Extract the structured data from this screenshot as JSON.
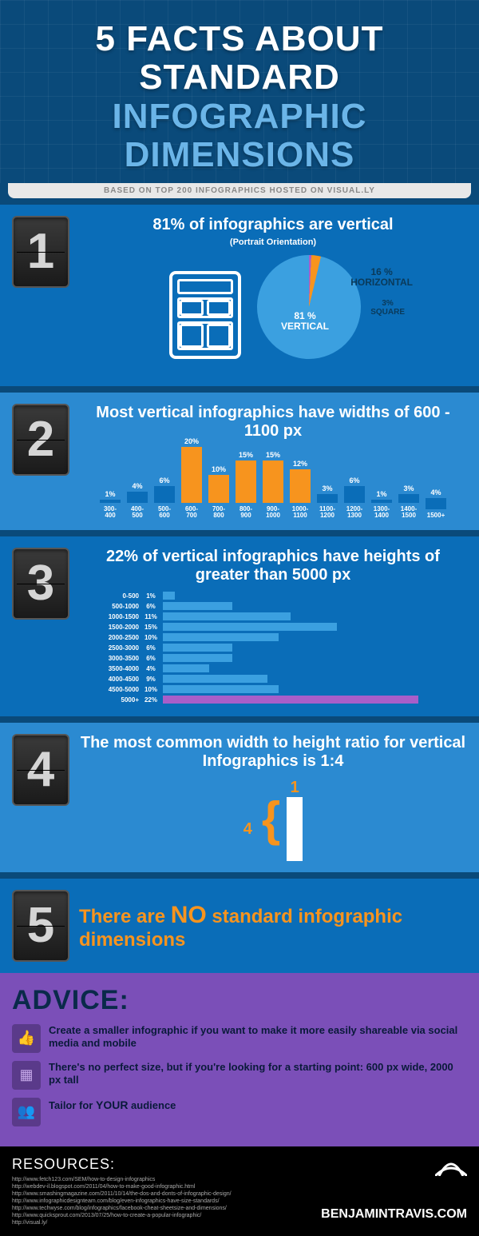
{
  "header": {
    "title_line1": "5 FACTS ABOUT STANDARD",
    "title_line2": "INFOGRAPHIC",
    "title_line3": "DIMENSIONS",
    "subtitle": "BASED ON TOP 200 INFOGRAPHICS HOSTED ON VISUAL.LY"
  },
  "fact1": {
    "num": "1",
    "title": "81% of infographics are vertical",
    "subtitle": "(Portrait Orientation)",
    "pie": {
      "slices": [
        {
          "label": "VERTICAL",
          "pct": "81 %",
          "value": 81,
          "color": "#3ba0e0"
        },
        {
          "label": "HORIZONTAL",
          "pct": "16 %",
          "value": 16,
          "color": "#a85ec9"
        },
        {
          "label": "SQUARE",
          "pct": "3%",
          "value": 3,
          "color": "#f7941e"
        }
      ]
    }
  },
  "fact2": {
    "num": "2",
    "title": "Most vertical infographics have widths of 600 - 1100 px",
    "bars": [
      {
        "label": "300-400",
        "pct": "1%",
        "value": 1,
        "color": "#0a6db8"
      },
      {
        "label": "400-500",
        "pct": "4%",
        "value": 4,
        "color": "#0a6db8"
      },
      {
        "label": "500-600",
        "pct": "6%",
        "value": 6,
        "color": "#0a6db8"
      },
      {
        "label": "600-700",
        "pct": "20%",
        "value": 20,
        "color": "#f7941e"
      },
      {
        "label": "700-800",
        "pct": "10%",
        "value": 10,
        "color": "#f7941e"
      },
      {
        "label": "800-900",
        "pct": "15%",
        "value": 15,
        "color": "#f7941e"
      },
      {
        "label": "900-1000",
        "pct": "15%",
        "value": 15,
        "color": "#f7941e"
      },
      {
        "label": "1000-1100",
        "pct": "12%",
        "value": 12,
        "color": "#f7941e"
      },
      {
        "label": "1100-1200",
        "pct": "3%",
        "value": 3,
        "color": "#0a6db8"
      },
      {
        "label": "1200-1300",
        "pct": "6%",
        "value": 6,
        "color": "#0a6db8"
      },
      {
        "label": "1300-1400",
        "pct": "1%",
        "value": 1,
        "color": "#0a6db8"
      },
      {
        "label": "1400-1500",
        "pct": "3%",
        "value": 3,
        "color": "#0a6db8"
      },
      {
        "label": "1500+",
        "pct": "4%",
        "value": 4,
        "color": "#0a6db8"
      }
    ],
    "max_value": 20
  },
  "fact3": {
    "num": "3",
    "title": "22% of vertical infographics have heights of greater than 5000 px",
    "bars": [
      {
        "label": "0-500",
        "pct": "1%",
        "value": 1,
        "color": "#3ba0e0"
      },
      {
        "label": "500-1000",
        "pct": "6%",
        "value": 6,
        "color": "#3ba0e0"
      },
      {
        "label": "1000-1500",
        "pct": "11%",
        "value": 11,
        "color": "#3ba0e0"
      },
      {
        "label": "1500-2000",
        "pct": "15%",
        "value": 15,
        "color": "#3ba0e0"
      },
      {
        "label": "2000-2500",
        "pct": "10%",
        "value": 10,
        "color": "#3ba0e0"
      },
      {
        "label": "2500-3000",
        "pct": "6%",
        "value": 6,
        "color": "#3ba0e0"
      },
      {
        "label": "3000-3500",
        "pct": "6%",
        "value": 6,
        "color": "#3ba0e0"
      },
      {
        "label": "3500-4000",
        "pct": "4%",
        "value": 4,
        "color": "#3ba0e0"
      },
      {
        "label": "4000-4500",
        "pct": "9%",
        "value": 9,
        "color": "#3ba0e0"
      },
      {
        "label": "4500-5000",
        "pct": "10%",
        "value": 10,
        "color": "#3ba0e0"
      },
      {
        "label": "5000+",
        "pct": "22%",
        "value": 22,
        "color": "#a85ec9"
      }
    ],
    "max_value": 22
  },
  "fact4": {
    "num": "4",
    "title": "The most common width to height ratio for vertical Infographics is 1:4",
    "ratio_w": "1",
    "ratio_h": "4"
  },
  "fact5": {
    "num": "5",
    "title_pre": "There are ",
    "title_no": "NO",
    "title_post": " standard infographic dimensions"
  },
  "advice": {
    "header": "ADVICE:",
    "items": [
      {
        "icon": "👍",
        "text": "Create a smaller infographic if you want to make it more easily shareable via social media and mobile"
      },
      {
        "icon": "▦",
        "text": "There's no perfect size, but if you're looking for a starting point: 600 px wide, 2000 px tall"
      },
      {
        "icon": "👥",
        "text_pre": "Tailor for ",
        "text_b": "YOUR",
        "text_post": " audience"
      }
    ]
  },
  "footer": {
    "header": "RESOURCES:",
    "links": [
      "http://www.fetch123.com/SEM/how-to-design-infographics",
      "http://webdev-il.blogspot.com/2011/04/how-to-make-good-infographic.html",
      "http://www.smashingmagazine.com/2011/10/14/the-dos-and-donts-of-infographic-design/",
      "http://www.infographicdesignteam.com/blog/even-infographics-have-size-standards/",
      "http://www.techwyse.com/blog/infographics/facebook-cheat-sheetsize-and-dimensions/",
      "http://www.quicksprout.com/2013/07/25/how-to-create-a-popular-infographic/",
      "http://visual.ly/"
    ],
    "brand": "BENJAMINTRAVIS.COM"
  }
}
